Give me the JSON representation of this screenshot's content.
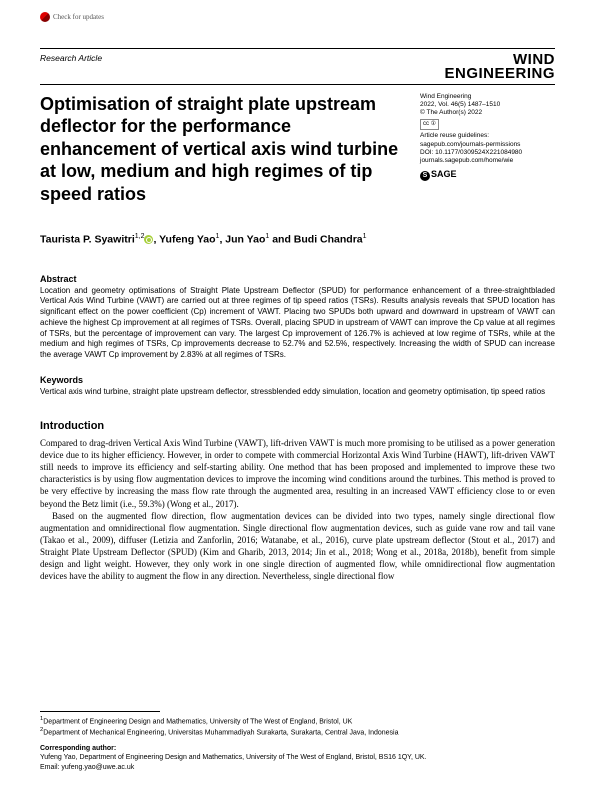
{
  "checkUpdates": "Check for updates",
  "articleType": "Research Article",
  "journalLogo": {
    "line1": "WIND",
    "line2": "ENGINEERING"
  },
  "title": "Optimisation of straight plate upstream deflector for the performance enhancement of vertical axis wind turbine at low, medium and high regimes of tip speed ratios",
  "meta": {
    "journal": "Wind Engineering",
    "volInfo": "2022, Vol. 46(5) 1487–1510",
    "copyright": "© The Author(s) 2022",
    "ccLabel": "cc ①",
    "reuse": "Article reuse guidelines:",
    "reuseUrl": "sagepub.com/journals-permissions",
    "doi": "DOI: 10.1177/0309524X221084980",
    "journalUrl": "journals.sagepub.com/home/wie",
    "publisher": "SAGE"
  },
  "authorsHtml": "Taurista P. Syawitri",
  "authorsSup1": "1,2",
  "author2": ", Yufeng Yao",
  "author2sup": "1",
  "author3": ", Jun Yao",
  "author3sup": "1",
  "author4": " and Budi Chandra",
  "author4sup": "1",
  "abstractHead": "Abstract",
  "abstract": "Location and geometry optimisations of Straight Plate Upstream Deflector (SPUD) for performance enhancement of a three-straightbladed Vertical Axis Wind Turbine (VAWT) are carried out at three regimes of tip speed ratios (TSRs). Results analysis reveals that SPUD location has significant effect on the power coefficient (Cp) increment of VAWT. Placing two SPUDs both upward and downward in upstream of VAWT can achieve the highest Cp improvement at all regimes of TSRs. Overall, placing SPUD in upstream of VAWT can improve the Cp value at all regimes of TSRs, but the percentage of improvement can vary. The largest Cp improvement of 126.7% is achieved at low regime of TSRs, while at the medium and high regimes of TSRs, Cp improvements decrease to 52.7% and 52.5%, respectively. Increasing the width of SPUD can increase the average VAWT Cp improvement by 2.83% at all regimes of TSRs.",
  "keywordsHead": "Keywords",
  "keywords": "Vertical axis wind turbine, straight plate upstream deflector, stressblended eddy simulation, location and geometry optimisation, tip speed ratios",
  "introHead": "Introduction",
  "introP1": "Compared to drag-driven Vertical Axis Wind Turbine (VAWT), lift-driven VAWT is much more promising to be utilised as a power generation device due to its higher efficiency. However, in order to compete with commercial Horizontal Axis Wind Turbine (HAWT), lift-driven VAWT still needs to improve its efficiency and self-starting ability. One method that has been proposed and implemented to improve these two characteristics is by using flow augmentation devices to improve the incoming wind conditions around the turbines. This method is proved to be very effective by increasing the mass flow rate through the augmented area, resulting in an increased VAWT efficiency close to or even beyond the Betz limit (i.e., 59.3%) (Wong et al., 2017).",
  "introP2": "Based on the augmented flow direction, flow augmentation devices can be divided into two types, namely single directional flow augmentation and omnidirectional flow augmentation. Single directional flow augmentation devices, such as guide vane row and tail vane (Takao et al., 2009), diffuser (Letizia and Zanforlin, 2016; Watanabe, et al., 2016), curve plate upstream deflector (Stout et al., 2017) and Straight Plate Upstream Deflector (SPUD) (Kim and Gharib, 2013, 2014; Jin et al., 2018; Wong et al., 2018a, 2018b), benefit from simple design and light weight. However, they only work in one single direction of augmented flow, while omnidirectional flow augmentation devices have the ability to augment the flow in any direction. Nevertheless, single directional flow",
  "affil1": "Department of Engineering Design and Mathematics, University of The West of England, Bristol, UK",
  "affil2": "Department of Mechanical Engineering, Universitas Muhammadiyah Surakarta, Surakarta, Central Java, Indonesia",
  "corrHead": "Corresponding author:",
  "corrText": "Yufeng Yao, Department of Engineering Design and Mathematics, University of The West of England, Bristol, BS16 1QY, UK.",
  "corrEmail": "Email: yufeng.yao@uwe.ac.uk"
}
